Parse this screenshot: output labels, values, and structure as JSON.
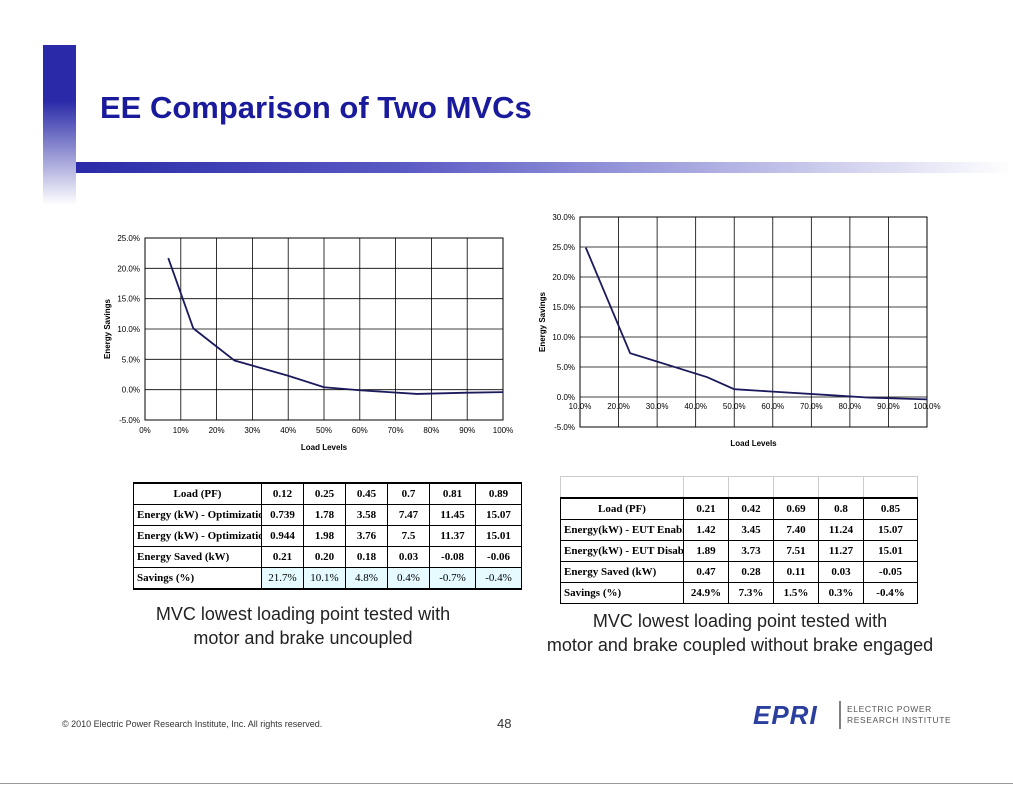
{
  "slide": {
    "title": "EE Comparison of Two MVCs",
    "footer": "© 2010 Electric Power Research Institute, Inc. All rights reserved.",
    "page_number": "48",
    "logo_text": "EPRI",
    "logo_subtext_line1": "ELECTRIC POWER",
    "logo_subtext_line2": "RESEARCH INSTITUTE"
  },
  "chart_data": [
    {
      "type": "line",
      "xlabel": "Load Levels",
      "ylabel": "Energy Savings",
      "x_ticks": [
        "0%",
        "10%",
        "20%",
        "30%",
        "40%",
        "50%",
        "60%",
        "70%",
        "80%",
        "90%",
        "100%"
      ],
      "y_ticks": [
        "25.0%",
        "20.0%",
        "15.0%",
        "10.0%",
        "5.0%",
        "0.0%",
        "-5.0%"
      ],
      "xlim": [
        0,
        100
      ],
      "ylim": [
        -5,
        25
      ],
      "grid": true,
      "series": [
        {
          "name": "Savings",
          "x": [
            6.5,
            13.5,
            25,
            40,
            50,
            60,
            76,
            90,
            100
          ],
          "y": [
            21.7,
            10.1,
            4.8,
            2.3,
            0.4,
            -0.1,
            -0.7,
            -0.5,
            -0.4
          ]
        }
      ],
      "line_color": "#1a1a5c"
    },
    {
      "type": "line",
      "xlabel": "Load Levels",
      "ylabel": "Energy Savings",
      "x_ticks": [
        "10.0%",
        "20.0%",
        "30.0%",
        "40.0%",
        "50.0%",
        "60.0%",
        "70.0%",
        "80.0%",
        "90.0%",
        "100.0%"
      ],
      "y_ticks": [
        "30.0%",
        "25.0%",
        "20.0%",
        "15.0%",
        "10.0%",
        "5.0%",
        "0.0%",
        "-5.0%"
      ],
      "xlim": [
        10,
        100
      ],
      "ylim": [
        -5,
        30
      ],
      "grid": true,
      "series": [
        {
          "name": "Savings",
          "x": [
            11.5,
            23,
            43,
            50,
            60,
            75,
            85,
            100
          ],
          "y": [
            24.9,
            7.3,
            3.3,
            1.3,
            0.9,
            0.3,
            -0.1,
            -0.4
          ]
        }
      ],
      "line_color": "#1a1a5c"
    }
  ],
  "table1": {
    "header": [
      "Load (PF)",
      "0.12",
      "0.25",
      "0.45",
      "0.7",
      "0.81",
      "0.89"
    ],
    "rows": [
      [
        "Energy (kW) - Optimization Enabled",
        "0.739",
        "1.78",
        "3.58",
        "7.47",
        "11.45",
        "15.07"
      ],
      [
        "Energy (kW) - Optimization Disabled",
        "0.944",
        "1.98",
        "3.76",
        "7.5",
        "11.37",
        "15.01"
      ],
      [
        "Energy Saved (kW)",
        "0.21",
        "0.20",
        "0.18",
        "0.03",
        "-0.08",
        "-0.06"
      ],
      [
        "Savings (%)",
        "21.7%",
        "10.1%",
        "4.8%",
        "0.4%",
        "-0.7%",
        "-0.4%"
      ]
    ]
  },
  "table2": {
    "header": [
      "Load (PF)",
      "0.21",
      "0.42",
      "0.69",
      "0.8",
      "0.85"
    ],
    "rows": [
      [
        "Energy(kW) - EUT Enabled",
        "1.42",
        "3.45",
        "7.40",
        "11.24",
        "15.07"
      ],
      [
        "Energy(kW) - EUT Disabled",
        "1.89",
        "3.73",
        "7.51",
        "11.27",
        "15.01"
      ],
      [
        "Energy Saved (kW)",
        "0.47",
        "0.28",
        "0.11",
        "0.03",
        "-0.05"
      ],
      [
        "Savings (%)",
        "24.9%",
        "7.3%",
        "1.5%",
        "0.3%",
        "-0.4%"
      ]
    ]
  },
  "captions": {
    "left_line1": "MVC lowest loading point tested with",
    "left_line2": "motor and brake uncoupled",
    "right_line1": "MVC lowest loading point tested with",
    "right_line2": "motor and brake coupled without brake engaged"
  }
}
